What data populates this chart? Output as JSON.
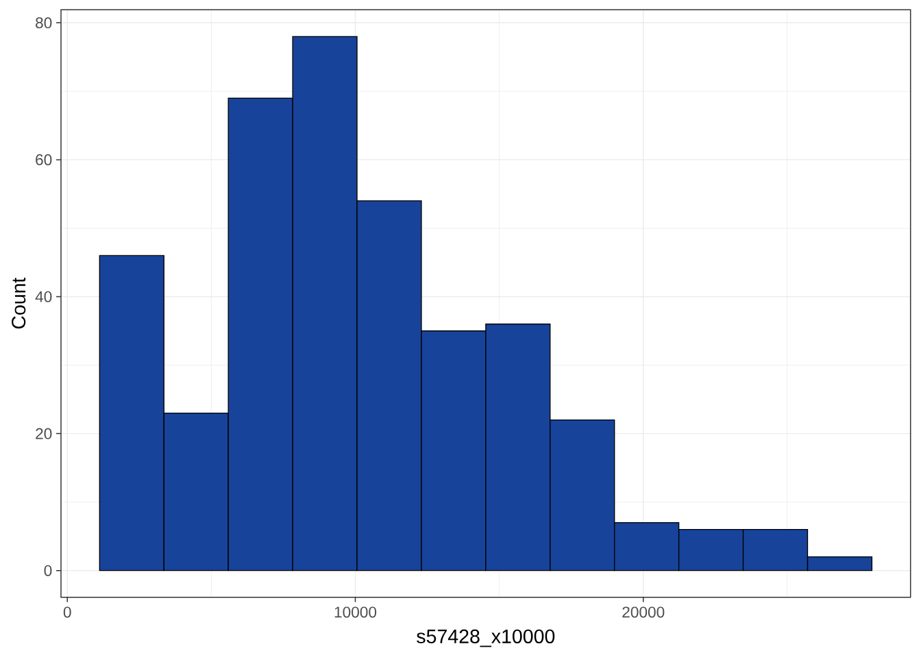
{
  "chart_data": {
    "type": "histogram",
    "xlabel": "s57428_x10000",
    "ylabel": "Count",
    "bins": [
      1120,
      3355,
      5590,
      7825,
      10060,
      12295,
      14530,
      16765,
      19000,
      21235,
      23470,
      25705,
      27940
    ],
    "values": [
      46,
      23,
      69,
      78,
      54,
      35,
      36,
      22,
      7,
      6,
      6,
      2
    ],
    "color": "#18439a",
    "xlim": [
      -220,
      29280
    ],
    "ylim": [
      -3.9,
      81.9
    ],
    "xticks": [
      0,
      10000,
      20000
    ],
    "yticks": [
      0,
      20,
      40,
      60,
      80
    ],
    "grid": true
  }
}
